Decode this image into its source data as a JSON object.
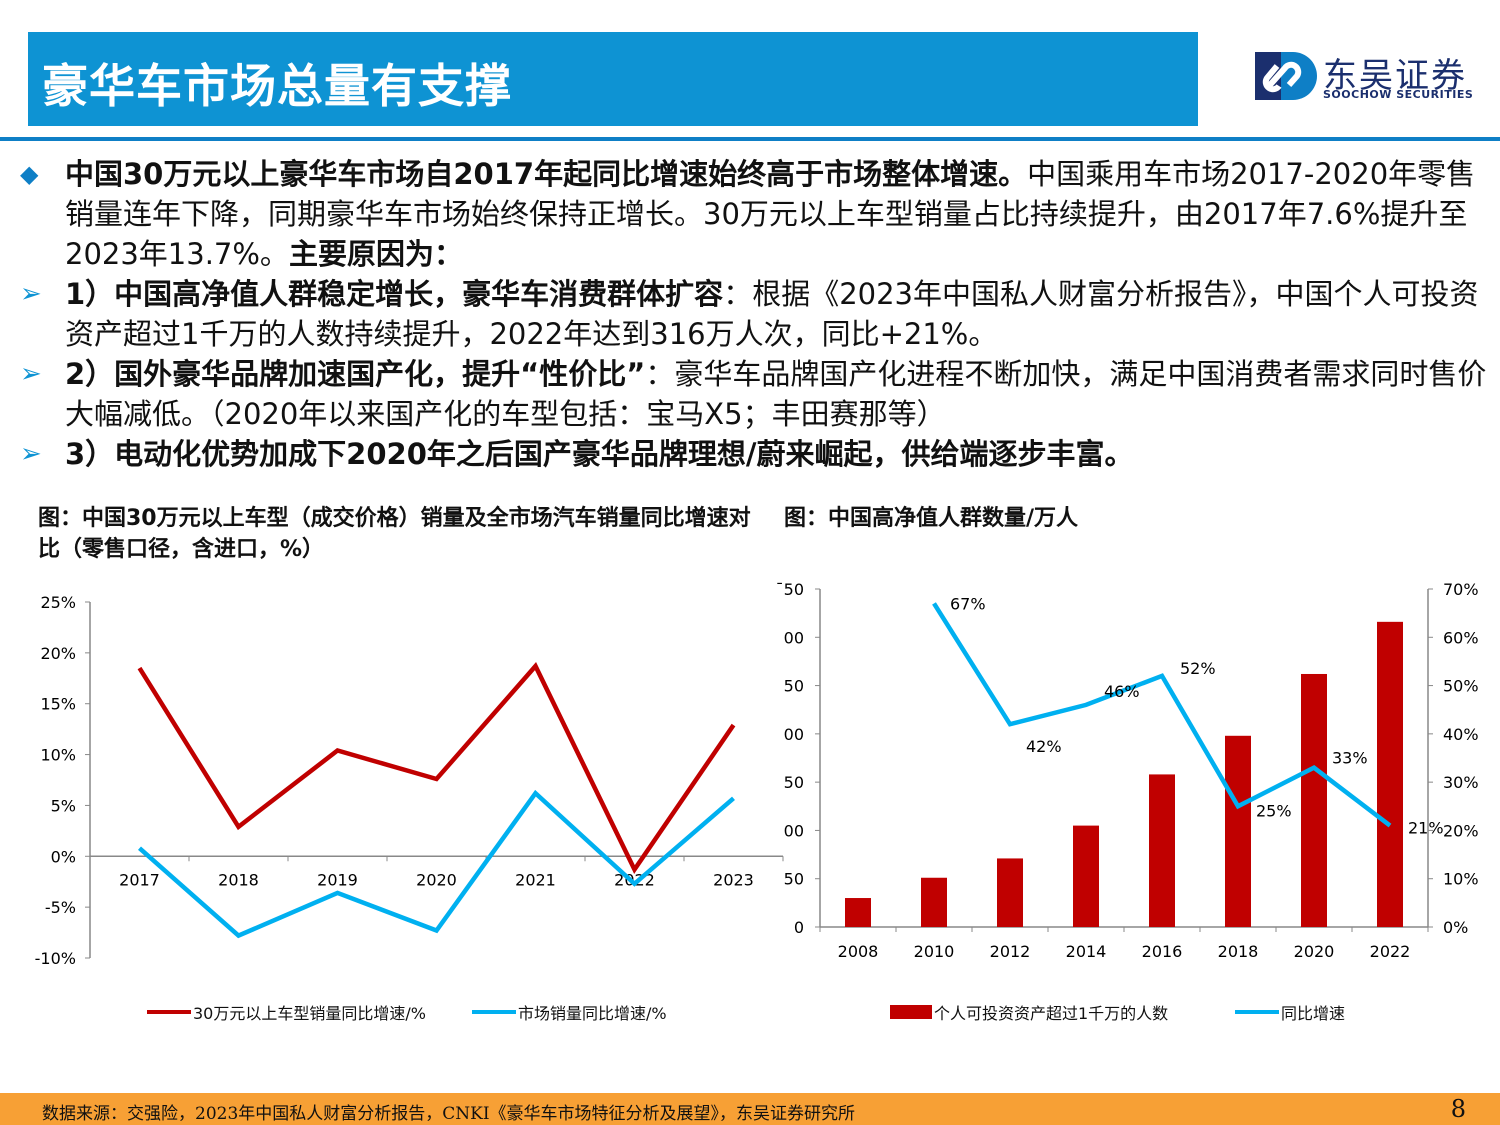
{
  "header": {
    "title": "豪华车市场总量有支撑"
  },
  "logo": {
    "cn": "东吴证券",
    "en": "SOOCHOW SECURITIES"
  },
  "colors": {
    "header": "#0e93d3",
    "red": "#c00000",
    "blue": "#00b0f0",
    "footer": "#f7a035",
    "logo": "#1b2f6e"
  },
  "points": [
    {
      "bold": "中国30万元以上豪华车市场自2017年起同比增速始终高于市场整体增速。",
      "text": "中国乘用车市场2017-2020年零售销量连年下降，同期豪华车市场始终保持正增长。30万元以上车型销量占比持续提升，由2017年7.6%提升至2023年13.7%。",
      "tail": "主要原因为："
    },
    {
      "bold": "1）中国高净值人群稳定增长，豪华车消费群体扩容",
      "text": "：根据《2023年中国私人财富分析报告》，中国个人可投资资产超过1千万的人数持续提升，2022年达到316万人次，同比+21%。"
    },
    {
      "bold": "2）国外豪华品牌加速国产化，提升“性价比”",
      "text": "：豪华车品牌国产化进程不断加快，满足中国消费者需求同时售价大幅减低。（2020年以来国产化的车型包括：宝马X5；丰田赛那等）"
    },
    {
      "bold": "3）电动化优势加成下2020年之后国产豪华品牌理想/蔚来崛起，供给端逐步丰富。",
      "text": ""
    }
  ],
  "chart_data": [
    {
      "type": "line",
      "title": "图：中国30万元以上车型（成交价格）销量及全市场汽车销量同比增速对比（零售口径，含进口，%）",
      "categories": [
        "2017",
        "2018",
        "2019",
        "2020",
        "2021",
        "2022",
        "2023"
      ],
      "yticks": [
        "25%",
        "20%",
        "15%",
        "10%",
        "5%",
        "0%",
        "-5%",
        "-10%"
      ],
      "ylim": [
        -10,
        25
      ],
      "series": [
        {
          "name": "30万元以上车型销量同比增速/%",
          "color": "#c00000",
          "values": [
            18.5,
            2.9,
            10.4,
            7.6,
            18.7,
            -1.3,
            12.9
          ]
        },
        {
          "name": "市场销量同比增速/%",
          "color": "#00b0f0",
          "values": [
            0.8,
            -7.8,
            -3.6,
            -7.3,
            6.2,
            -2.7,
            5.7
          ]
        }
      ],
      "legend": "bottom"
    },
    {
      "type": "bar+line",
      "title": "图：中国高净值人群数量/万人",
      "categories": [
        "2008",
        "2010",
        "2012",
        "2014",
        "2016",
        "2018",
        "2020",
        "2022"
      ],
      "yticks_left": [
        "ˉ50",
        "00",
        "50",
        "00",
        "50",
        "00",
        "50",
        "0"
      ],
      "ylim_left": [
        0,
        350
      ],
      "yticks_right": [
        "70%",
        "60%",
        "50%",
        "40%",
        "30%",
        "20%",
        "10%",
        "0%"
      ],
      "ylim_right": [
        0,
        70
      ],
      "series": [
        {
          "name": "个人可投资资产超过1千万的人数",
          "type": "bar",
          "color": "#c00000",
          "values": [
            30,
            51,
            71,
            105,
            158,
            198,
            262,
            316
          ]
        },
        {
          "name": "同比增速",
          "type": "line",
          "color": "#00b0f0",
          "values": [
            null,
            67,
            42,
            46,
            52,
            25,
            33,
            21
          ],
          "labels": [
            "",
            "67%",
            "42%",
            "46%",
            "52%",
            "25%",
            "33%",
            "21%"
          ]
        }
      ],
      "legend": "bottom"
    }
  ],
  "footer": {
    "source": "数据来源：交强险，2023年中国私人财富分析报告，CNKI《豪华车市场特征分析及展望》，东吴证券研究所",
    "page": "8"
  }
}
